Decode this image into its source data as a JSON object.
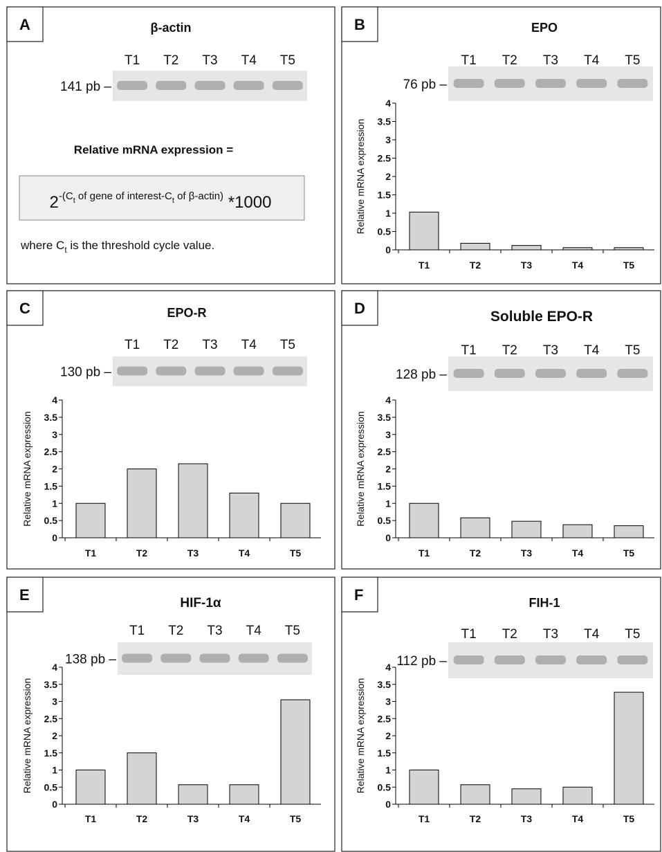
{
  "panel_a": {
    "panel": "A",
    "title": "β-actin",
    "lanes": [
      "T1",
      "T2",
      "T3",
      "T4",
      "T5"
    ],
    "band_label": "141 pb –",
    "heading": "Relative mRNA expression =",
    "formula": {
      "base": "2",
      "exponent_parts": [
        "-(C",
        "t",
        " of gene of interest-C",
        "t",
        " of β-actin)"
      ],
      "tail": " *1000"
    },
    "note": [
      "where C",
      "t",
      " is the threshold cycle value."
    ]
  },
  "chart_data": [
    {
      "type": "bar",
      "panel": "B",
      "title": "EPO",
      "lanes": [
        "T1",
        "T2",
        "T3",
        "T4",
        "T5"
      ],
      "band_label": "76 pb –",
      "ylabel": "Relative mRNA expression",
      "categories": [
        "T1",
        "T2",
        "T3",
        "T4",
        "T5"
      ],
      "values": [
        1.03,
        0.18,
        0.12,
        0.06,
        0.06
      ],
      "color": "#d4d4d4",
      "ylim": [
        0,
        4
      ],
      "yticks": [
        0,
        0.5,
        1,
        1.5,
        2,
        2.5,
        3,
        3.5,
        4
      ]
    },
    {
      "type": "bar",
      "panel": "C",
      "title": "EPO-R",
      "lanes": [
        "T1",
        "T2",
        "T3",
        "T4",
        "T5"
      ],
      "band_label": "130 pb –",
      "ylabel": "Relative mRNA expression",
      "categories": [
        "T1",
        "T2",
        "T3",
        "T4",
        "T5"
      ],
      "values": [
        1.0,
        2.0,
        2.15,
        1.3,
        1.0
      ],
      "color": "#d4d4d4",
      "ylim": [
        0,
        4
      ],
      "yticks": [
        0,
        0.5,
        1,
        1.5,
        2,
        2.5,
        3,
        3.5,
        4
      ]
    },
    {
      "type": "bar",
      "panel": "D",
      "title": "Soluble EPO-R",
      "lanes": [
        "T1",
        "T2",
        "T3",
        "T4",
        "T5"
      ],
      "band_label": "128 pb –",
      "ylabel": "Relative mRNA expression",
      "categories": [
        "T1",
        "T2",
        "T3",
        "T4",
        "T5"
      ],
      "values": [
        1.0,
        0.58,
        0.48,
        0.38,
        0.35
      ],
      "color": "#d4d4d4",
      "ylim": [
        0,
        4
      ],
      "yticks": [
        0,
        0.5,
        1,
        1.5,
        2,
        2.5,
        3,
        3.5,
        4
      ]
    },
    {
      "type": "bar",
      "panel": "E",
      "title": "HIF-1α",
      "lanes": [
        "T1",
        "T2",
        "T3",
        "T4",
        "T5"
      ],
      "band_label": "138 pb –",
      "ylabel": "Relative mRNA expression",
      "categories": [
        "T1",
        "T2",
        "T3",
        "T4",
        "T5"
      ],
      "values": [
        1.0,
        1.5,
        0.57,
        0.57,
        3.05
      ],
      "color": "#d4d4d4",
      "ylim": [
        0,
        4
      ],
      "yticks": [
        0,
        0.5,
        1,
        1.5,
        2,
        2.5,
        3,
        3.5,
        4
      ]
    },
    {
      "type": "bar",
      "panel": "F",
      "title": "FIH-1",
      "lanes": [
        "T1",
        "T2",
        "T3",
        "T4",
        "T5"
      ],
      "band_label": "112 pb –",
      "ylabel": "Relative mRNA expression",
      "categories": [
        "T1",
        "T2",
        "T3",
        "T4",
        "T5"
      ],
      "values": [
        1.0,
        0.57,
        0.45,
        0.5,
        3.27
      ],
      "color": "#d4d4d4",
      "ylim": [
        0,
        4
      ],
      "yticks": [
        0,
        0.5,
        1,
        1.5,
        2,
        2.5,
        3,
        3.5,
        4
      ]
    }
  ]
}
